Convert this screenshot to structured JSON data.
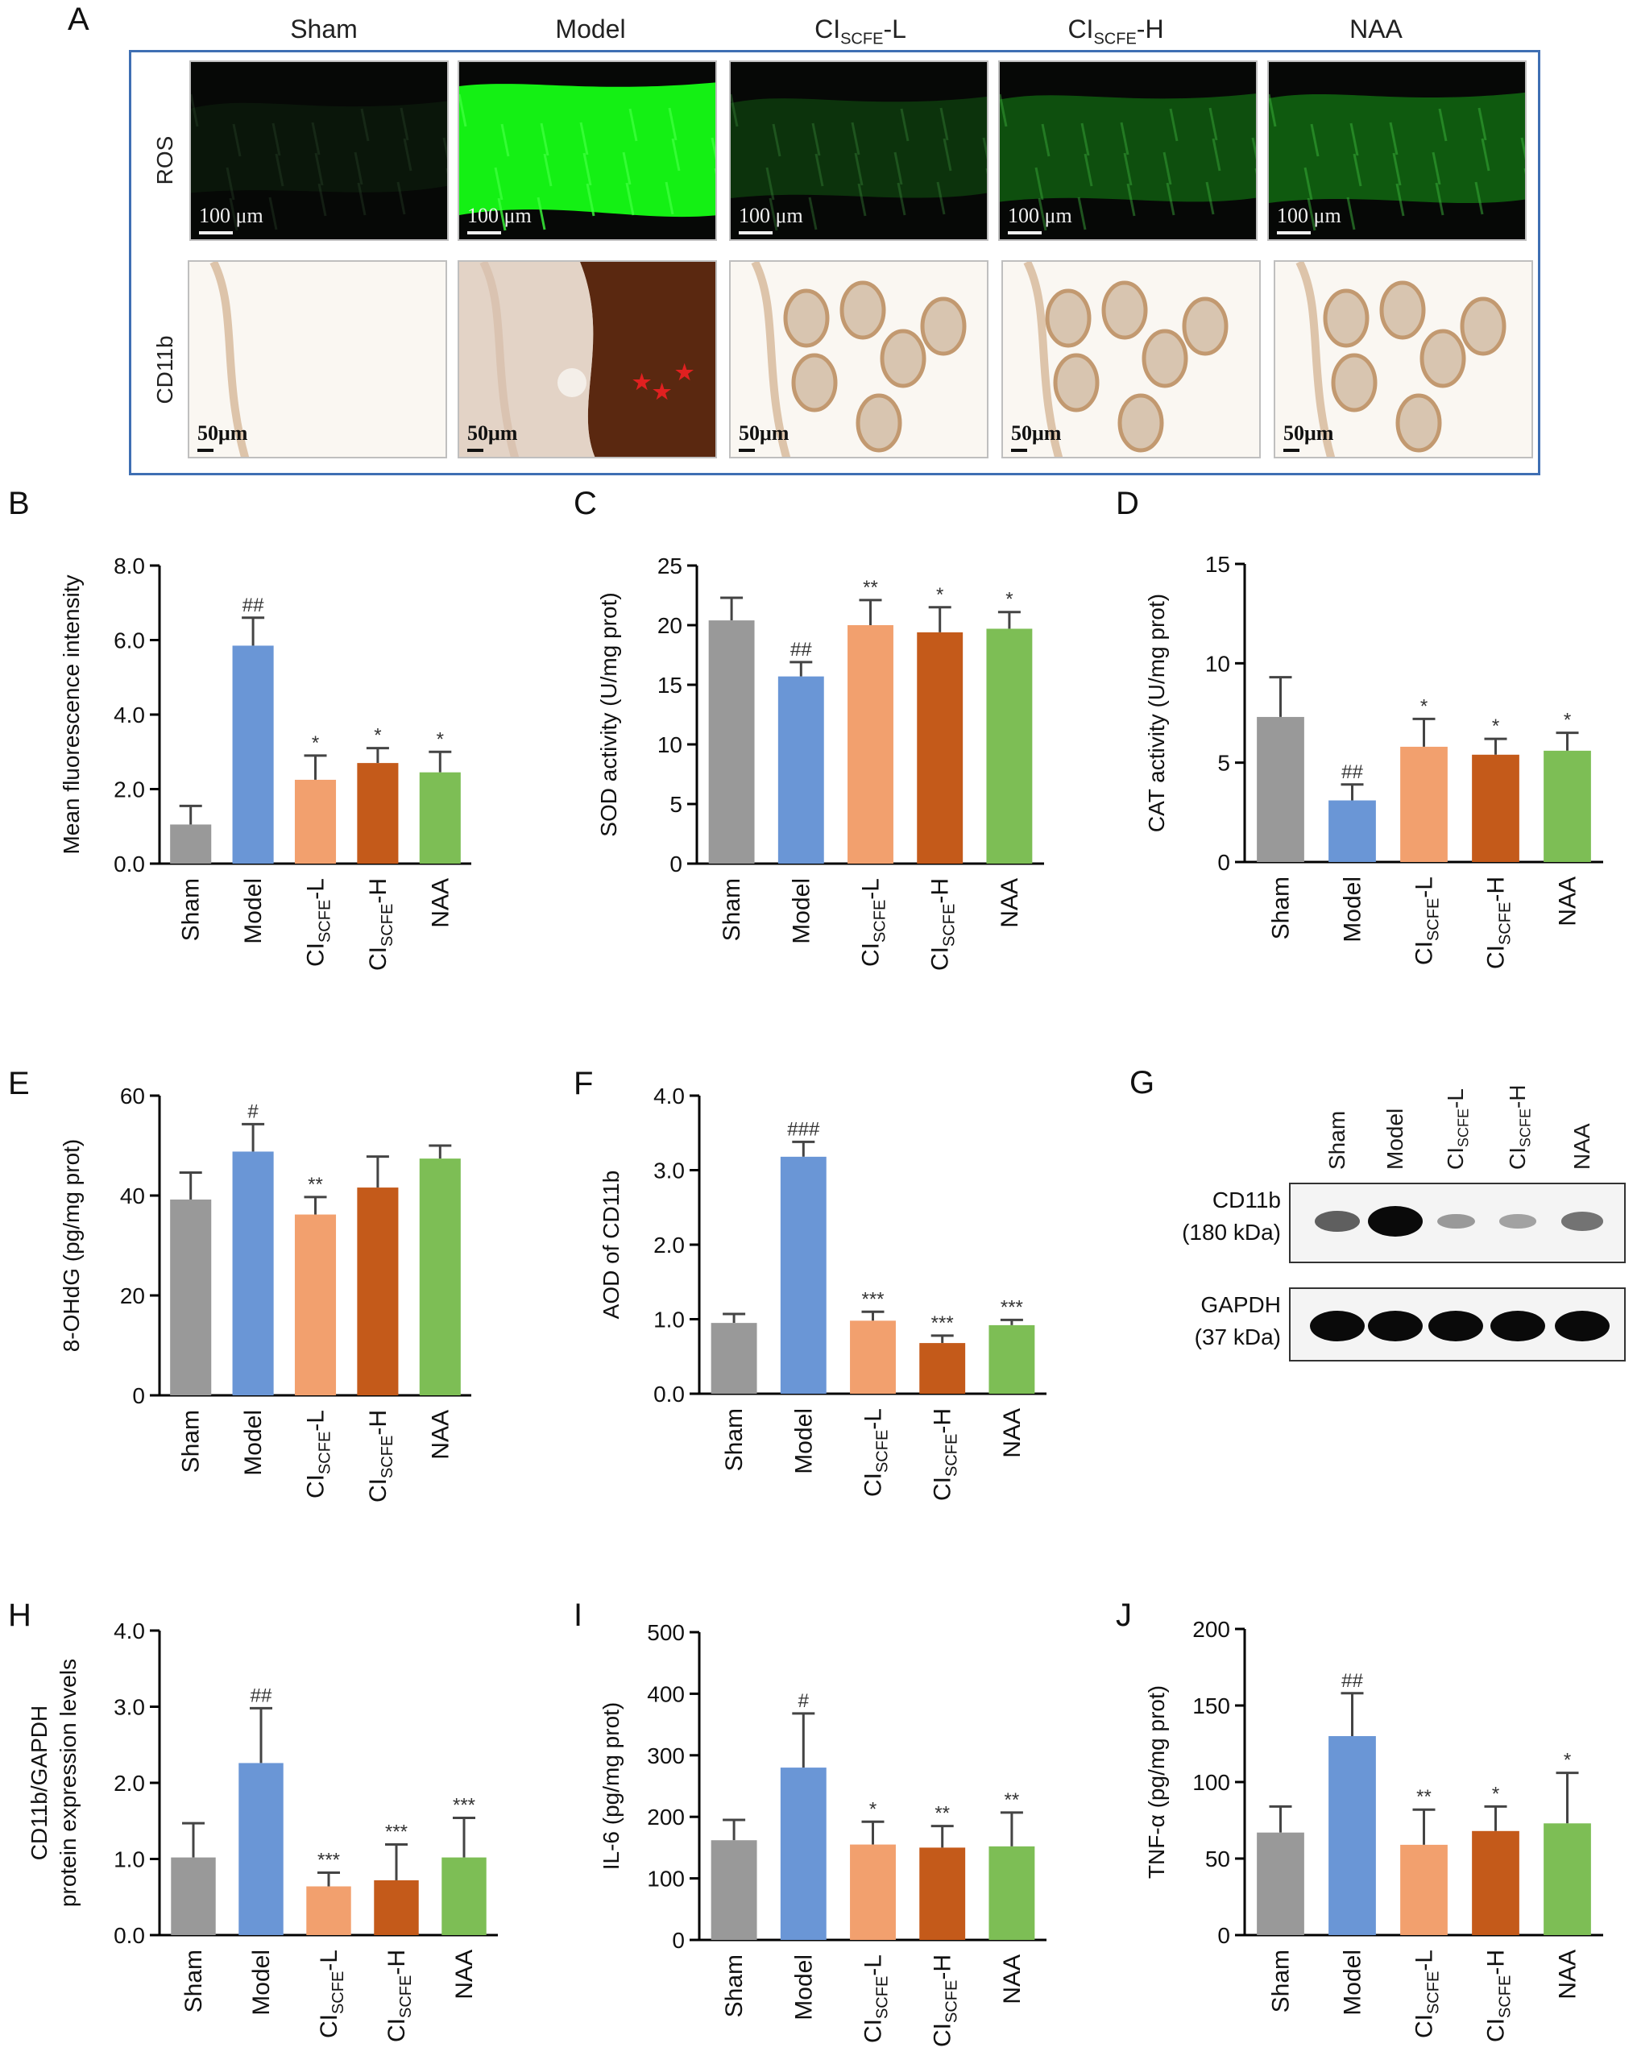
{
  "panelA": {
    "letter": "A",
    "columns": [
      "Sham",
      "Model",
      "CI",
      "CI",
      "NAA"
    ],
    "column_subs": [
      "",
      "",
      "SCFE",
      "SCFE",
      ""
    ],
    "column_suffix": [
      "",
      "",
      "-L",
      "-H",
      ""
    ],
    "row_labels": [
      "ROS",
      "CD11b"
    ],
    "ros_scale": "100 μm",
    "cd_scale": "50μm",
    "ros_intensity": [
      0.08,
      1.0,
      0.3,
      0.45,
      0.5
    ]
  },
  "blot": {
    "letter": "G",
    "lanes": [
      "Sham",
      "Model",
      "CI",
      "CI",
      "NAA"
    ],
    "lane_subs": [
      "",
      "",
      "SCFE",
      "SCFE",
      ""
    ],
    "lane_suffix": [
      "",
      "",
      "-L",
      "-H",
      ""
    ],
    "rows": [
      {
        "name": "CD11b",
        "size": "(180 kDa)",
        "band_intensity": [
          0.55,
          1.0,
          0.25,
          0.2,
          0.45
        ]
      },
      {
        "name": "GAPDH",
        "size": "(37 kDa)",
        "band_intensity": [
          1.0,
          1.0,
          1.0,
          1.0,
          1.0
        ]
      }
    ]
  },
  "chart_data": [
    {
      "id": "B",
      "letter": "B",
      "type": "bar",
      "ylabel": "Mean fluorescence intensity",
      "ylim": [
        0,
        8
      ],
      "yticks": [
        "0.0",
        "2.0",
        "4.0",
        "6.0",
        "8.0"
      ],
      "values": [
        1.05,
        5.85,
        2.25,
        2.7,
        2.45
      ],
      "errors": [
        0.5,
        0.75,
        0.65,
        0.4,
        0.55
      ],
      "annotations": [
        "",
        "##",
        "*",
        "*",
        "*"
      ]
    },
    {
      "id": "C",
      "letter": "C",
      "type": "bar",
      "ylabel": "SOD activity (U/mg prot)",
      "ylim": [
        0,
        25
      ],
      "yticks": [
        "0",
        "5",
        "10",
        "15",
        "20",
        "25"
      ],
      "values": [
        20.4,
        15.7,
        20.0,
        19.4,
        19.7
      ],
      "errors": [
        1.9,
        1.2,
        2.1,
        2.1,
        1.4
      ],
      "annotations": [
        "",
        "##",
        "**",
        "*",
        "*"
      ]
    },
    {
      "id": "D",
      "letter": "D",
      "type": "bar",
      "ylabel": "CAT activity (U/mg prot)",
      "ylim": [
        0,
        15
      ],
      "yticks": [
        "0",
        "5",
        "10",
        "15"
      ],
      "values": [
        7.3,
        3.1,
        5.8,
        5.4,
        5.6
      ],
      "errors": [
        2.0,
        0.8,
        1.4,
        0.8,
        0.9
      ],
      "annotations": [
        "",
        "##",
        "*",
        "*",
        "*"
      ]
    },
    {
      "id": "E",
      "letter": "E",
      "type": "bar",
      "ylabel": "8-OHdG (pg/mg prot)",
      "ylim": [
        0,
        60
      ],
      "yticks": [
        "0",
        "20",
        "40",
        "60"
      ],
      "values": [
        39.2,
        48.8,
        36.2,
        41.6,
        47.4
      ],
      "errors": [
        5.4,
        5.5,
        3.5,
        6.2,
        2.6
      ],
      "annotations": [
        "",
        "#",
        "**",
        "",
        ""
      ]
    },
    {
      "id": "F",
      "letter": "F",
      "type": "bar",
      "ylabel": "AOD of CD11b",
      "ylim": [
        0,
        4
      ],
      "yticks": [
        "0.0",
        "1.0",
        "2.0",
        "3.0",
        "4.0"
      ],
      "values": [
        0.95,
        3.18,
        0.98,
        0.68,
        0.92
      ],
      "errors": [
        0.12,
        0.2,
        0.12,
        0.1,
        0.07
      ],
      "annotations": [
        "",
        "###",
        "***",
        "***",
        "***"
      ]
    },
    {
      "id": "H",
      "letter": "H",
      "type": "bar",
      "ylabel": "CD11b/GAPDH",
      "ylabel2": "protein expression levels",
      "ylim": [
        0,
        4
      ],
      "yticks": [
        "0.0",
        "1.0",
        "2.0",
        "3.0",
        "4.0"
      ],
      "values": [
        1.02,
        2.26,
        0.64,
        0.72,
        1.02
      ],
      "errors": [
        0.45,
        0.72,
        0.18,
        0.47,
        0.52
      ],
      "annotations": [
        "",
        "##",
        "***",
        "***",
        "***"
      ]
    },
    {
      "id": "I",
      "letter": "I",
      "type": "bar",
      "ylabel": "IL-6 (pg/mg prot)",
      "ylim": [
        0,
        500
      ],
      "yticks": [
        "0",
        "100",
        "200",
        "300",
        "400",
        "500"
      ],
      "values": [
        162,
        280,
        155,
        150,
        152
      ],
      "errors": [
        33,
        88,
        37,
        35,
        55
      ],
      "annotations": [
        "",
        "#",
        "*",
        "**",
        "**"
      ]
    },
    {
      "id": "J",
      "letter": "J",
      "type": "bar",
      "ylabel": "TNF-α (pg/mg prot)",
      "ylim": [
        0,
        200
      ],
      "yticks": [
        "0",
        "50",
        "100",
        "150",
        "200"
      ],
      "values": [
        67,
        130,
        59,
        68,
        73
      ],
      "errors": [
        17,
        28,
        23,
        16,
        33
      ],
      "annotations": [
        "",
        "##",
        "**",
        "*",
        "*"
      ]
    }
  ],
  "categories": [
    "Sham",
    "Model",
    "CI",
    "CI",
    "NAA"
  ],
  "category_subs": [
    "",
    "",
    "SCFE",
    "SCFE",
    ""
  ],
  "category_suffix": [
    "",
    "",
    "-L",
    "-H",
    ""
  ],
  "colors": [
    "#999999",
    "#6a96d6",
    "#f2a06e",
    "#c45a1a",
    "#7dbe55"
  ]
}
